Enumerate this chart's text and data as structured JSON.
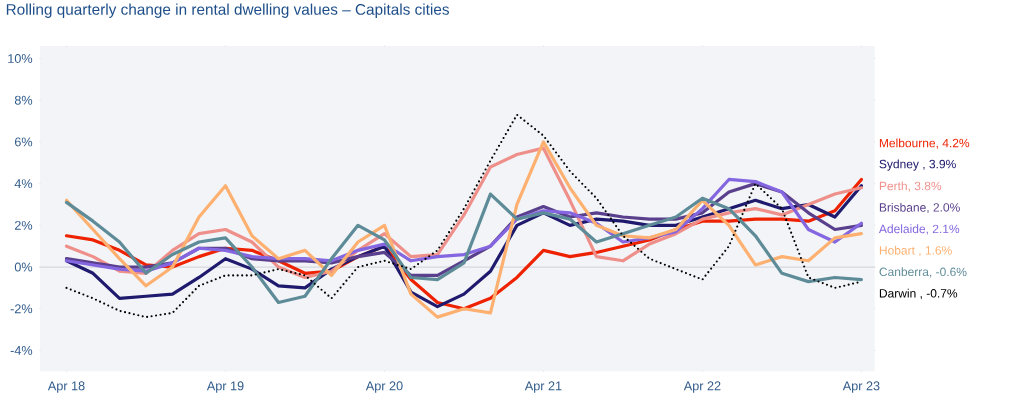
{
  "chart_data": {
    "type": "line",
    "title": "Rolling quarterly change in rental dwelling values – Capitals cities",
    "x": [
      "2018-04",
      "2018-06",
      "2018-08",
      "2018-10",
      "2018-12",
      "2019-02",
      "2019-04",
      "2019-06",
      "2019-08",
      "2019-10",
      "2019-12",
      "2020-02",
      "2020-04",
      "2020-06",
      "2020-08",
      "2020-10",
      "2020-12",
      "2021-02",
      "2021-04",
      "2021-06",
      "2021-08",
      "2021-10",
      "2021-12",
      "2022-02",
      "2022-04",
      "2022-06",
      "2022-08",
      "2022-10",
      "2022-12",
      "2023-02",
      "2023-04"
    ],
    "series": [
      {
        "name": "Melbourne, 4.2%",
        "color": "#ee2200",
        "values": [
          1.5,
          1.3,
          0.8,
          0.1,
          0.0,
          0.5,
          0.9,
          0.8,
          0.3,
          -0.3,
          -0.2,
          0.5,
          1.0,
          -0.6,
          -1.7,
          -2.0,
          -1.5,
          -0.5,
          0.8,
          0.5,
          0.7,
          1.0,
          1.3,
          1.8,
          2.2,
          2.2,
          2.3,
          2.3,
          2.2,
          2.7,
          4.2
        ]
      },
      {
        "name": "Sydney , 3.9%",
        "color": "#1f1a6e",
        "values": [
          0.3,
          -0.3,
          -1.5,
          -1.4,
          -1.3,
          -0.5,
          0.4,
          -0.1,
          -0.9,
          -1.0,
          -0.1,
          0.5,
          1.0,
          -1.2,
          -1.9,
          -1.3,
          -0.2,
          2.0,
          2.6,
          2.0,
          2.3,
          2.2,
          2.0,
          2.0,
          2.4,
          2.8,
          3.2,
          2.8,
          3.0,
          2.4,
          3.9
        ]
      },
      {
        "name": "Perth, 3.8%",
        "color": "#ef8f8a",
        "values": [
          1.0,
          0.5,
          -0.2,
          -0.3,
          0.8,
          1.6,
          1.8,
          1.2,
          0.0,
          -0.5,
          -0.2,
          0.8,
          1.6,
          0.5,
          0.6,
          2.5,
          4.8,
          5.4,
          5.7,
          3.2,
          0.5,
          0.3,
          1.1,
          1.6,
          2.3,
          2.6,
          2.8,
          2.5,
          3.0,
          3.5,
          3.8
        ]
      },
      {
        "name": "Brisbane, 2.0%",
        "color": "#5a3f8c",
        "values": [
          0.4,
          0.2,
          0.0,
          0.0,
          0.2,
          0.9,
          0.9,
          0.4,
          0.3,
          0.3,
          0.2,
          0.5,
          0.7,
          -0.4,
          -0.4,
          0.3,
          1.0,
          2.4,
          2.9,
          2.4,
          2.6,
          2.4,
          2.3,
          2.3,
          2.6,
          3.6,
          4.0,
          3.6,
          2.6,
          1.8,
          2.0
        ]
      },
      {
        "name": "Adelaide, 2.1%",
        "color": "#8466e0",
        "values": [
          0.3,
          0.1,
          -0.1,
          -0.2,
          0.2,
          0.9,
          0.8,
          0.5,
          0.4,
          0.4,
          0.3,
          0.8,
          1.1,
          0.3,
          0.5,
          0.6,
          1.0,
          2.3,
          2.7,
          2.6,
          2.1,
          1.2,
          1.4,
          1.7,
          2.8,
          4.2,
          4.1,
          3.6,
          1.8,
          1.2,
          2.1
        ]
      },
      {
        "name": "Hobart , 1.6%",
        "color": "#fdb06f",
        "values": [
          3.2,
          1.8,
          0.4,
          -0.9,
          0.0,
          2.4,
          3.9,
          1.5,
          0.4,
          0.8,
          -0.4,
          1.2,
          2.0,
          -1.3,
          -2.4,
          -2.0,
          -2.2,
          3.0,
          6.0,
          3.8,
          2.0,
          1.5,
          1.4,
          1.8,
          3.2,
          2.0,
          0.1,
          0.5,
          0.3,
          1.4,
          1.6
        ]
      },
      {
        "name": "Canberra, -0.6%",
        "color": "#5e8b98",
        "values": [
          3.1,
          2.2,
          1.2,
          -0.3,
          0.6,
          1.2,
          1.4,
          0.0,
          -1.7,
          -1.4,
          0.4,
          2.0,
          1.3,
          -0.5,
          -0.6,
          0.2,
          3.5,
          2.3,
          2.6,
          2.3,
          1.2,
          1.6,
          2.0,
          2.4,
          3.3,
          2.8,
          1.5,
          -0.3,
          -0.7,
          -0.5,
          -0.6
        ]
      },
      {
        "name": "Darwin , -0.7%",
        "color": "#000000",
        "line_style": "dotted",
        "values": [
          -1.0,
          -1.5,
          -2.1,
          -2.4,
          -2.2,
          -0.9,
          -0.4,
          -0.4,
          -0.1,
          -0.4,
          -1.5,
          0.0,
          0.3,
          -0.1,
          0.8,
          2.8,
          5.1,
          7.3,
          6.3,
          4.6,
          3.3,
          1.5,
          0.4,
          -0.1,
          -0.6,
          1.0,
          4.0,
          2.8,
          -0.5,
          -1.0,
          -0.7
        ]
      }
    ],
    "xlim": [
      "2018-02",
      "2023-05"
    ],
    "xticks": [
      {
        "value": "2018-04",
        "label": "Apr 18"
      },
      {
        "value": "2019-04",
        "label": "Apr 19"
      },
      {
        "value": "2020-04",
        "label": "Apr 20"
      },
      {
        "value": "2021-04",
        "label": "Apr 21"
      },
      {
        "value": "2022-04",
        "label": "Apr 22"
      },
      {
        "value": "2023-04",
        "label": "Apr 23"
      }
    ],
    "ylim": [
      -5,
      10.6
    ],
    "yticks": [
      {
        "value": -4,
        "label": "-4%"
      },
      {
        "value": -2,
        "label": "-2%"
      },
      {
        "value": 0,
        "label": "0%"
      },
      {
        "value": 2,
        "label": "2%"
      },
      {
        "value": 4,
        "label": "4%"
      },
      {
        "value": 6,
        "label": "6%"
      },
      {
        "value": 8,
        "label": "8%"
      },
      {
        "value": 10,
        "label": "10%"
      }
    ],
    "marker": "none",
    "line_style": "solid"
  }
}
